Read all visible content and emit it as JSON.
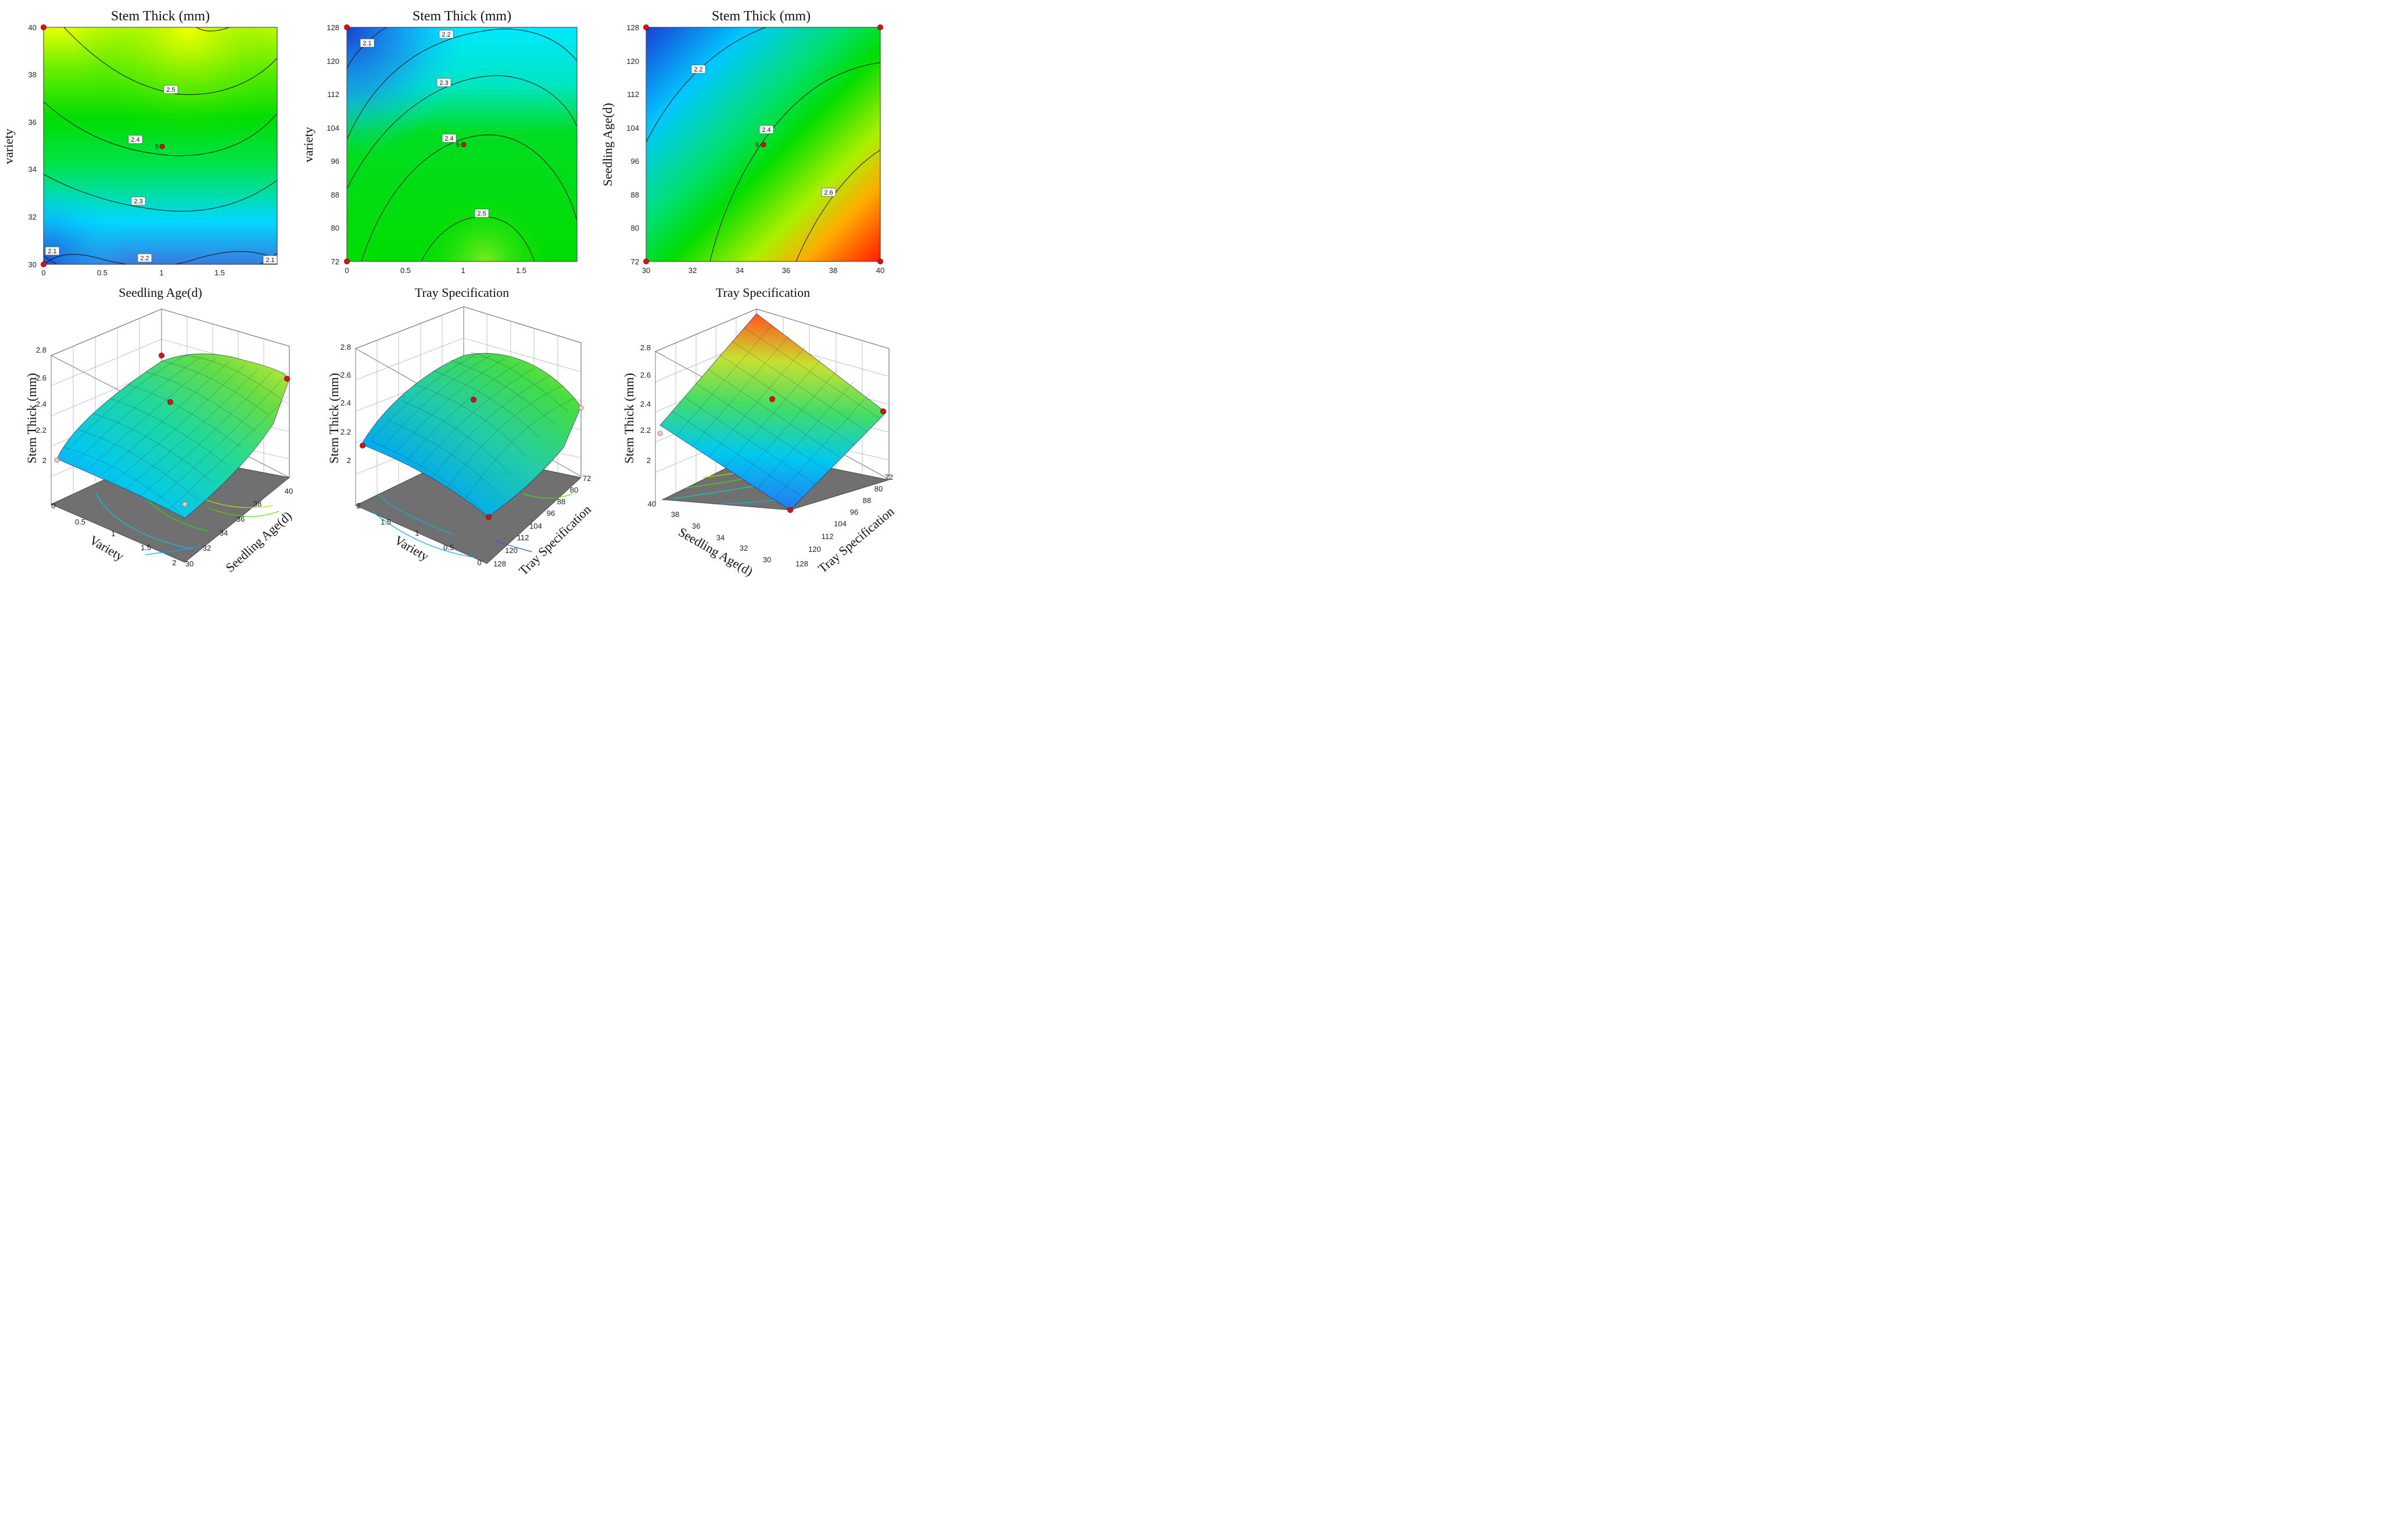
{
  "colors": {
    "low": "#1a4fd6",
    "cyan": "#00e6ff",
    "mid": "#00dd00",
    "yellow": "#eaff00",
    "high": "#ff2200",
    "design_point": "#dd1111",
    "floor": "#707070"
  },
  "chart_data": [
    {
      "type": "contour",
      "panel": "top-left",
      "title": "Stem Thick (mm)",
      "xlabel": "Seedling Age(d)",
      "ylabel": "variety",
      "xlim": [
        0,
        2
      ],
      "ylim": [
        30,
        40
      ],
      "xticks": [
        "0",
        "0.5",
        "1",
        "1.5"
      ],
      "yticks": [
        "30",
        "32",
        "34",
        "36",
        "38",
        "40"
      ],
      "contour_levels": [
        "2.1",
        "2.2",
        "2.3",
        "2.4",
        "2.5",
        "2.1"
      ],
      "center_label": "5",
      "design_points": [
        {
          "x": 0,
          "y": 30
        },
        {
          "x": 0,
          "y": 40
        },
        {
          "x": 1,
          "y": 35
        }
      ]
    },
    {
      "type": "contour",
      "panel": "top-middle",
      "title": "Stem Thick (mm)",
      "xlabel": "Tray Specification",
      "ylabel": "variety",
      "xlim": [
        0,
        2
      ],
      "ylim": [
        72,
        128
      ],
      "xticks": [
        "0",
        "0.5",
        "1",
        "1.5"
      ],
      "yticks": [
        "72",
        "80",
        "88",
        "96",
        "104",
        "112",
        "120",
        "128"
      ],
      "contour_levels": [
        "2.1",
        "2.2",
        "2.3",
        "2.4",
        "2.5"
      ],
      "center_label": "5",
      "design_points": [
        {
          "x": 0,
          "y": 72
        },
        {
          "x": 0,
          "y": 128
        },
        {
          "x": 1,
          "y": 100
        }
      ]
    },
    {
      "type": "contour",
      "panel": "top-right",
      "title": "Stem Thick (mm)",
      "xlabel": "Tray Specification",
      "ylabel": "Seedling Age(d)",
      "xlim": [
        30,
        40
      ],
      "ylim": [
        72,
        128
      ],
      "xticks": [
        "30",
        "32",
        "34",
        "36",
        "38",
        "40"
      ],
      "yticks": [
        "72",
        "80",
        "88",
        "96",
        "104",
        "112",
        "120",
        "128"
      ],
      "contour_levels": [
        "2.2",
        "2.4",
        "2.6"
      ],
      "center_label": "5",
      "design_points": [
        {
          "x": 30,
          "y": 72
        },
        {
          "x": 30,
          "y": 128
        },
        {
          "x": 40,
          "y": 72
        },
        {
          "x": 40,
          "y": 128
        },
        {
          "x": 35,
          "y": 100
        }
      ]
    },
    {
      "type": "surface",
      "panel": "bottom-left",
      "zlabel": "Stem Thick (mm)",
      "xlabel": "Variety",
      "ylabel": "Seedling Age(d)",
      "zticks": [
        "2",
        "2.2",
        "2.4",
        "2.6",
        "2.8"
      ],
      "xticks": [
        "0",
        "0.5",
        "1",
        "1.5",
        "2"
      ],
      "yticks": [
        "30",
        "32",
        "34",
        "36",
        "38",
        "40"
      ],
      "zlim": [
        2,
        2.8
      ]
    },
    {
      "type": "surface",
      "panel": "bottom-middle",
      "zlabel": "Stem Thick (mm)",
      "xlabel": "Variety",
      "ylabel": "Tray Specification",
      "zticks": [
        "2",
        "2.2",
        "2.4",
        "2.6",
        "2.8"
      ],
      "xticks": [
        "2",
        "1.5",
        "1",
        "0.5",
        "0"
      ],
      "yticks": [
        "128",
        "120",
        "112",
        "104",
        "96",
        "88",
        "80",
        "72"
      ],
      "zlim": [
        2,
        2.8
      ]
    },
    {
      "type": "surface",
      "panel": "bottom-right",
      "zlabel": "Stem Thick (mm)",
      "xlabel": "Seedling Age(d)",
      "ylabel": "Tray Specification",
      "zticks": [
        "2",
        "2.2",
        "2.4",
        "2.6",
        "2.8"
      ],
      "xticks": [
        "40",
        "38",
        "36",
        "34",
        "32",
        "30"
      ],
      "yticks": [
        "128",
        "120",
        "112",
        "104",
        "96",
        "88",
        "80",
        "72"
      ],
      "zlim": [
        2,
        2.8
      ]
    }
  ]
}
